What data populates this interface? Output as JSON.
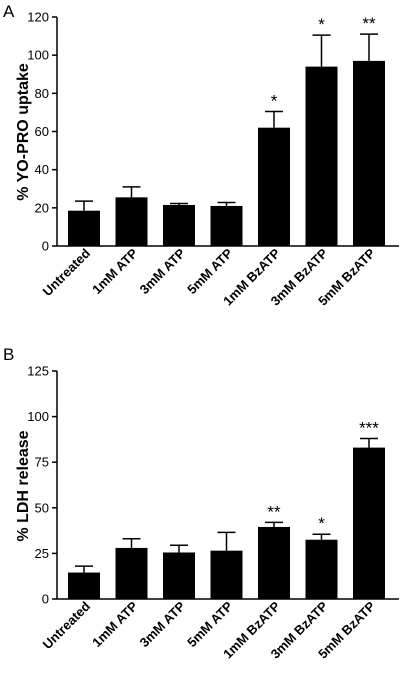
{
  "chart_data": [
    {
      "type": "bar",
      "panel": "A",
      "ylabel": "% YO-PRO uptake",
      "ylim": [
        0,
        120
      ],
      "yticks": [
        0,
        20,
        40,
        60,
        80,
        100,
        120
      ],
      "categories": [
        "Untreated",
        "1mM ATP",
        "3mM ATP",
        "5mM ATP",
        "1mM BzATP",
        "3mM BzATP",
        "5mM BzATP"
      ],
      "values": [
        18.5,
        25.5,
        21.5,
        21,
        62,
        94,
        97
      ],
      "errors": [
        5,
        5.5,
        0.8,
        1.8,
        8.5,
        16.5,
        14
      ],
      "annotations": [
        "",
        "",
        "",
        "",
        "*",
        "*",
        "**"
      ],
      "bar_color": "#000000"
    },
    {
      "type": "bar",
      "panel": "B",
      "ylabel": "% LDH release",
      "ylim": [
        0,
        125
      ],
      "yticks": [
        0,
        25,
        50,
        75,
        100,
        125
      ],
      "categories": [
        "Untreated",
        "1mM ATP",
        "3mM ATP",
        "5mM ATP",
        "1mM BzATP",
        "3mM BzATP",
        "5mM BzATP"
      ],
      "values": [
        14.5,
        28,
        25.5,
        26.5,
        39.5,
        32.5,
        83
      ],
      "errors": [
        3.5,
        5,
        4,
        10,
        2.5,
        3,
        5
      ],
      "annotations": [
        "",
        "",
        "",
        "",
        "**",
        "*",
        "***"
      ],
      "bar_color": "#000000"
    }
  ]
}
